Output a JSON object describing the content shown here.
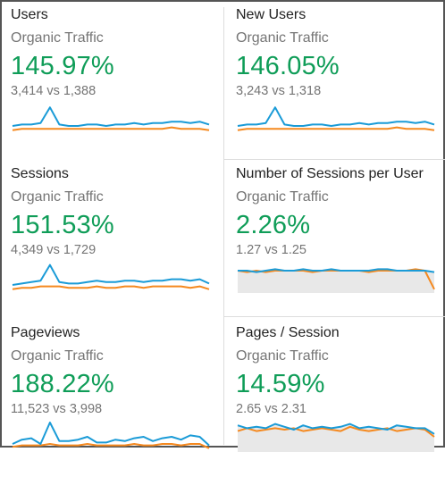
{
  "colors": {
    "primary_line": "#1a9bd7",
    "comparison_line": "#f5891f",
    "percent_text": "#0f9d58",
    "area_fill": "#e8e8e8"
  },
  "cards": [
    {
      "title": "Users",
      "segment": "Organic Traffic",
      "change": "145.97%",
      "comparison": "3,414 vs 1,388",
      "area": false,
      "primary": [
        5,
        6,
        6,
        7,
        18,
        6,
        5,
        5,
        6,
        6,
        5,
        6,
        6,
        7,
        6,
        7,
        7,
        8,
        8,
        7,
        8,
        6
      ],
      "secondary": [
        2,
        3,
        3,
        3,
        3,
        3,
        3,
        3,
        3,
        3,
        3,
        3,
        3,
        3,
        3,
        3,
        3,
        4,
        3,
        3,
        3,
        2
      ]
    },
    {
      "title": "New Users",
      "segment": "Organic Traffic",
      "change": "146.05%",
      "comparison": "3,243 vs 1,318",
      "area": false,
      "primary": [
        5,
        6,
        6,
        7,
        18,
        6,
        5,
        5,
        6,
        6,
        5,
        6,
        6,
        7,
        6,
        7,
        7,
        8,
        8,
        7,
        8,
        6
      ],
      "secondary": [
        2,
        3,
        3,
        3,
        3,
        3,
        3,
        3,
        3,
        3,
        3,
        3,
        3,
        3,
        3,
        3,
        3,
        4,
        3,
        3,
        3,
        2
      ]
    },
    {
      "title": "Sessions",
      "segment": "Organic Traffic",
      "change": "151.53%",
      "comparison": "4,349 vs 1,729",
      "area": false,
      "primary": [
        5,
        6,
        7,
        8,
        19,
        7,
        6,
        6,
        7,
        8,
        7,
        7,
        8,
        8,
        7,
        8,
        8,
        9,
        9,
        8,
        9,
        6
      ],
      "secondary": [
        2,
        3,
        3,
        4,
        4,
        4,
        3,
        3,
        3,
        4,
        3,
        3,
        4,
        4,
        3,
        4,
        4,
        4,
        4,
        3,
        4,
        2
      ]
    },
    {
      "title": "Number of Sessions per User",
      "segment": "Organic Traffic",
      "change": "2.26%",
      "comparison": "1.27 vs 1.25",
      "area": true,
      "primary": [
        15,
        15,
        14,
        15,
        16,
        15,
        15,
        16,
        15,
        15,
        16,
        15,
        15,
        15,
        15,
        16,
        16,
        15,
        15,
        15,
        15,
        14
      ],
      "secondary": [
        15,
        14,
        15,
        14,
        15,
        15,
        15,
        15,
        14,
        15,
        15,
        15,
        15,
        15,
        14,
        15,
        15,
        15,
        15,
        16,
        15,
        2
      ]
    },
    {
      "title": "Pageviews",
      "segment": "Organic Traffic",
      "change": "188.22%",
      "comparison": "11,523 vs 3,998",
      "area": false,
      "primary": [
        5,
        8,
        9,
        5,
        20,
        7,
        7,
        8,
        10,
        6,
        6,
        8,
        7,
        9,
        10,
        7,
        9,
        10,
        8,
        11,
        10,
        4
      ],
      "secondary": [
        3,
        4,
        4,
        4,
        5,
        4,
        4,
        4,
        5,
        4,
        4,
        4,
        4,
        5,
        4,
        4,
        5,
        5,
        4,
        5,
        5,
        2
      ]
    },
    {
      "title": "Pages / Session",
      "segment": "Organic Traffic",
      "change": "14.59%",
      "comparison": "2.65 vs 2.31",
      "area": true,
      "primary": [
        18,
        16,
        17,
        16,
        19,
        17,
        15,
        18,
        16,
        17,
        16,
        17,
        19,
        16,
        17,
        16,
        15,
        18,
        17,
        16,
        16,
        12
      ],
      "secondary": [
        14,
        16,
        14,
        15,
        16,
        15,
        16,
        14,
        15,
        16,
        15,
        14,
        17,
        15,
        14,
        15,
        16,
        14,
        15,
        16,
        15,
        10
      ]
    }
  ]
}
